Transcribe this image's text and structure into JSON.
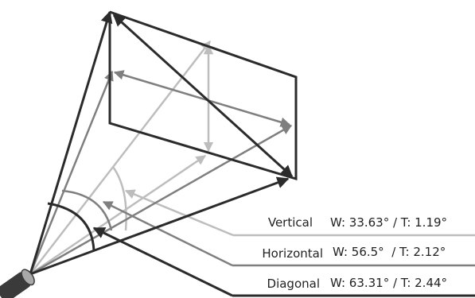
{
  "colors": {
    "dark": "#2b2b2b",
    "mid": "#7f7f7f",
    "light": "#bdbdbd",
    "camera_body": "#3a3a3a",
    "lens": "#a9a9a9"
  },
  "icons": {
    "camera": "camera-icon"
  },
  "labels": [
    {
      "name": "Vertical",
      "value": "W: 33.63° / T: 1.19°"
    },
    {
      "name": "Horizontal",
      "value": "W: 56.5°  / T: 2.12°"
    },
    {
      "name": "Diagonal",
      "value": "W: 63.31° / T: 2.44°"
    }
  ]
}
